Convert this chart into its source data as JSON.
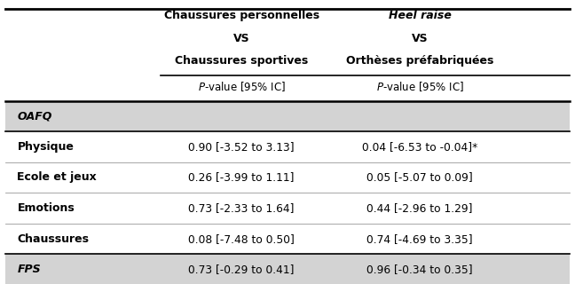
{
  "col1_header_line1": "Chaussures personnelles",
  "col1_header_line2": "VS",
  "col1_header_line3": "Chaussures sportives",
  "col2_header_line1": "Heel raise",
  "col2_header_line2": "VS",
  "col2_header_line3": "Orthèses préfabriquées",
  "subheader": "P-value [95% IC]",
  "rows": [
    {
      "label": "OAFQ",
      "col1": "",
      "col2": "",
      "style": "italic_bold",
      "shaded": true
    },
    {
      "label": "Physique",
      "col1": "0.90 [-3.52 to 3.13]",
      "col2": "0.04 [-6.53 to -0.04]*",
      "style": "bold",
      "shaded": false
    },
    {
      "label": "Ecole et jeux",
      "col1": "0.26 [-3.99 to 1.11]",
      "col2": "0.05 [-5.07 to 0.09]",
      "style": "bold",
      "shaded": false
    },
    {
      "label": "Emotions",
      "col1": "0.73 [-2.33 to 1.64]",
      "col2": "0.44 [-2.96 to 1.29]",
      "style": "bold",
      "shaded": false
    },
    {
      "label": "Chaussures",
      "col1": "0.08 [-7.48 to 0.50]",
      "col2": "0.74 [-4.69 to 3.35]",
      "style": "bold",
      "shaded": false
    },
    {
      "label": "FPS",
      "col1": "0.73 [-0.29 to 0.41]",
      "col2": "0.96 [-0.34 to 0.35]",
      "style": "italic_bold",
      "shaded": true
    }
  ],
  "bg_color": "#ffffff",
  "shade_color": "#d3d3d3",
  "text_color": "#000000",
  "fig_width": 6.48,
  "fig_height": 3.2,
  "dpi": 100
}
